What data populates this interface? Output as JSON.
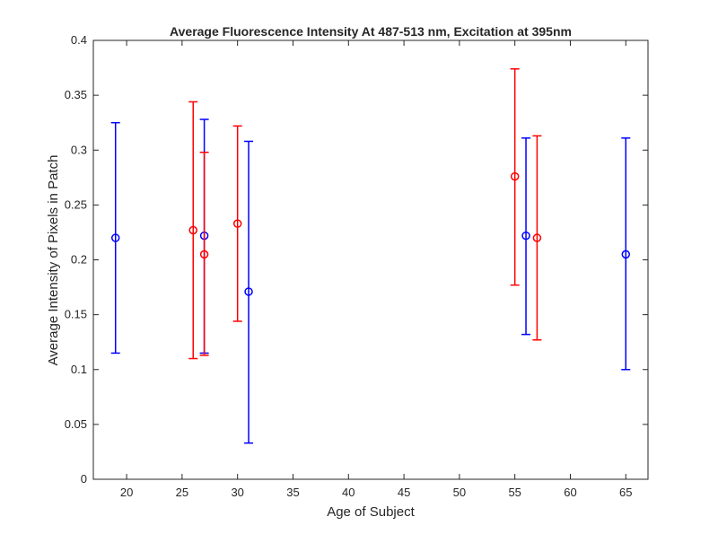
{
  "chart_data": {
    "type": "scatter",
    "title": "Average Fluorescence Intensity At 487-513 nm, Excitation at 395nm",
    "xlabel": "Age of Subject",
    "ylabel": "Average Intensity of Pixels in Patch",
    "xlim": [
      17,
      67
    ],
    "ylim": [
      0,
      0.4
    ],
    "xticks": [
      20,
      25,
      30,
      35,
      40,
      45,
      50,
      55,
      60,
      65
    ],
    "yticks": [
      0,
      0.05,
      0.1,
      0.15,
      0.2,
      0.25,
      0.3,
      0.35,
      0.4
    ],
    "ytick_labels": [
      "0",
      "0.05",
      "0.1",
      "0.15",
      "0.2",
      "0.25",
      "0.3",
      "0.35",
      "0.4"
    ],
    "grid": false,
    "series": [
      {
        "color": "#0000ff",
        "marker": "circle",
        "points": [
          {
            "x": 19,
            "y": 0.22,
            "low": 0.115,
            "high": 0.325
          },
          {
            "x": 27,
            "y": 0.222,
            "low": 0.115,
            "high": 0.328
          },
          {
            "x": 31,
            "y": 0.171,
            "low": 0.033,
            "high": 0.308
          },
          {
            "x": 56,
            "y": 0.222,
            "low": 0.132,
            "high": 0.311
          },
          {
            "x": 65,
            "y": 0.205,
            "low": 0.1,
            "high": 0.311
          }
        ]
      },
      {
        "color": "#ff0000",
        "marker": "circle",
        "points": [
          {
            "x": 26,
            "y": 0.227,
            "low": 0.11,
            "high": 0.344
          },
          {
            "x": 27,
            "y": 0.205,
            "low": 0.113,
            "high": 0.298
          },
          {
            "x": 30,
            "y": 0.233,
            "low": 0.144,
            "high": 0.322
          },
          {
            "x": 55,
            "y": 0.276,
            "low": 0.177,
            "high": 0.374
          },
          {
            "x": 57,
            "y": 0.22,
            "low": 0.127,
            "high": 0.313
          }
        ]
      }
    ]
  }
}
